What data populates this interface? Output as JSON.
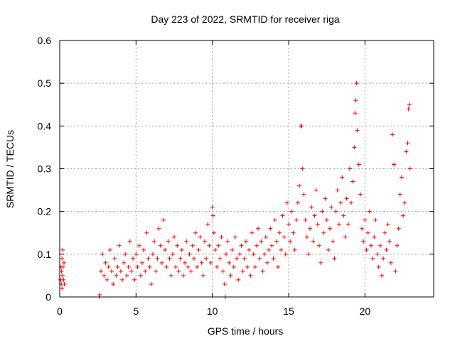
{
  "chart_data": {
    "type": "scatter",
    "title": "Day 223 of 2022, SRMTID for receiver riga",
    "xlabel": "GPS time / hours",
    "ylabel": "SRMTID / TECUs",
    "xlim": [
      0,
      24.5
    ],
    "ylim": [
      0,
      0.6
    ],
    "x_ticks": [
      0,
      5,
      10,
      15,
      20
    ],
    "x_tick_labels": [
      "0",
      "5",
      "10",
      "15",
      "20"
    ],
    "y_ticks": [
      0,
      0.1,
      0.2,
      0.3,
      0.4,
      0.5,
      0.6
    ],
    "y_tick_labels": [
      "0",
      "0.1",
      "0.2",
      "0.3",
      "0.4",
      "0.5",
      "0.6"
    ],
    "grid": true,
    "marker": "+",
    "color": "#ff0000",
    "series": [
      {
        "name": "SRMTID",
        "points": [
          [
            0.05,
            0.04
          ],
          [
            0.08,
            0.07
          ],
          [
            0.1,
            0.03
          ],
          [
            0.12,
            0.06
          ],
          [
            0.15,
            0.09
          ],
          [
            0.18,
            0.05
          ],
          [
            0.2,
            0.11
          ],
          [
            0.22,
            0.07
          ],
          [
            0.25,
            0.04
          ],
          [
            0.28,
            0.08
          ],
          [
            0.3,
            0.03
          ],
          [
            0.15,
            0.02
          ],
          [
            2.6,
            0.0
          ],
          [
            2.62,
            0.005
          ],
          [
            2.7,
            0.06
          ],
          [
            2.8,
            0.1
          ],
          [
            2.9,
            0.05
          ],
          [
            3.0,
            0.08
          ],
          [
            3.1,
            0.04
          ],
          [
            3.2,
            0.07
          ],
          [
            3.3,
            0.11
          ],
          [
            3.4,
            0.06
          ],
          [
            3.5,
            0.03
          ],
          [
            3.6,
            0.09
          ],
          [
            3.7,
            0.05
          ],
          [
            3.8,
            0.07
          ],
          [
            3.9,
            0.12
          ],
          [
            4.0,
            0.06
          ],
          [
            4.1,
            0.04
          ],
          [
            4.2,
            0.08
          ],
          [
            4.3,
            0.1
          ],
          [
            4.4,
            0.05
          ],
          [
            4.5,
            0.07
          ],
          [
            4.6,
            0.13
          ],
          [
            4.7,
            0.06
          ],
          [
            4.8,
            0.09
          ],
          [
            4.9,
            0.04
          ],
          [
            5.0,
            0.1
          ],
          [
            5.1,
            0.07
          ],
          [
            5.2,
            0.12
          ],
          [
            5.3,
            0.05
          ],
          [
            5.4,
            0.08
          ],
          [
            5.5,
            0.11
          ],
          [
            5.6,
            0.06
          ],
          [
            5.7,
            0.15
          ],
          [
            5.8,
            0.09
          ],
          [
            5.9,
            0.07
          ],
          [
            6.0,
            0.03
          ],
          [
            6.1,
            0.1
          ],
          [
            6.2,
            0.13
          ],
          [
            6.3,
            0.06
          ],
          [
            6.4,
            0.09
          ],
          [
            6.5,
            0.16
          ],
          [
            6.6,
            0.12
          ],
          [
            6.7,
            0.08
          ],
          [
            6.8,
            0.18
          ],
          [
            6.9,
            0.11
          ],
          [
            7.0,
            0.07
          ],
          [
            7.1,
            0.13
          ],
          [
            7.2,
            0.09
          ],
          [
            7.3,
            0.05
          ],
          [
            7.4,
            0.1
          ],
          [
            7.5,
            0.14
          ],
          [
            7.6,
            0.07
          ],
          [
            7.7,
            0.12
          ],
          [
            7.8,
            0.06
          ],
          [
            7.9,
            0.09
          ],
          [
            8.0,
            0.11
          ],
          [
            8.1,
            0.05
          ],
          [
            8.2,
            0.08
          ],
          [
            8.3,
            0.13
          ],
          [
            8.4,
            0.07
          ],
          [
            8.5,
            0.1
          ],
          [
            8.6,
            0.06
          ],
          [
            8.7,
            0.12
          ],
          [
            8.8,
            0.09
          ],
          [
            8.9,
            0.15
          ],
          [
            9.0,
            0.07
          ],
          [
            9.1,
            0.11
          ],
          [
            9.2,
            0.14
          ],
          [
            9.3,
            0.08
          ],
          [
            9.4,
            0.05
          ],
          [
            9.5,
            0.13
          ],
          [
            9.6,
            0.09
          ],
          [
            9.7,
            0.17
          ],
          [
            9.8,
            0.12
          ],
          [
            9.9,
            0.08
          ],
          [
            10.0,
            0.21
          ],
          [
            10.05,
            0.19
          ],
          [
            10.1,
            0.15
          ],
          [
            10.2,
            0.11
          ],
          [
            10.3,
            0.07
          ],
          [
            10.4,
            0.12
          ],
          [
            10.5,
            0.09
          ],
          [
            10.6,
            0.14
          ],
          [
            10.7,
            0.06
          ],
          [
            10.8,
            0.03
          ],
          [
            10.85,
            0.0
          ],
          [
            10.9,
            0.1
          ],
          [
            11.0,
            0.13
          ],
          [
            11.1,
            0.08
          ],
          [
            11.2,
            0.05
          ],
          [
            11.3,
            0.11
          ],
          [
            11.4,
            0.07
          ],
          [
            11.5,
            0.14
          ],
          [
            11.6,
            0.09
          ],
          [
            11.7,
            0.04
          ],
          [
            11.8,
            0.1
          ],
          [
            11.9,
            0.12
          ],
          [
            12.0,
            0.06
          ],
          [
            12.1,
            0.09
          ],
          [
            12.2,
            0.13
          ],
          [
            12.3,
            0.07
          ],
          [
            12.4,
            0.11
          ],
          [
            12.5,
            0.05
          ],
          [
            12.6,
            0.15
          ],
          [
            12.7,
            0.1
          ],
          [
            12.8,
            0.07
          ],
          [
            12.9,
            0.12
          ],
          [
            13.0,
            0.16
          ],
          [
            13.1,
            0.09
          ],
          [
            13.2,
            0.13
          ],
          [
            13.3,
            0.06
          ],
          [
            13.4,
            0.1
          ],
          [
            13.5,
            0.14
          ],
          [
            13.6,
            0.08
          ],
          [
            13.7,
            0.11
          ],
          [
            13.8,
            0.16
          ],
          [
            13.9,
            0.12
          ],
          [
            14.0,
            0.09
          ],
          [
            14.1,
            0.18
          ],
          [
            14.2,
            0.13
          ],
          [
            14.3,
            0.07
          ],
          [
            14.4,
            0.15
          ],
          [
            14.5,
            0.11
          ],
          [
            14.6,
            0.19
          ],
          [
            14.7,
            0.14
          ],
          [
            14.8,
            0.1
          ],
          [
            14.9,
            0.22
          ],
          [
            15.0,
            0.17
          ],
          [
            15.1,
            0.13
          ],
          [
            15.2,
            0.2
          ],
          [
            15.3,
            0.15
          ],
          [
            15.4,
            0.11
          ],
          [
            15.5,
            0.18
          ],
          [
            15.6,
            0.22
          ],
          [
            15.7,
            0.26
          ],
          [
            15.8,
            0.4
          ],
          [
            15.85,
            0.4
          ],
          [
            15.9,
            0.3
          ],
          [
            16.0,
            0.24
          ],
          [
            16.1,
            0.18
          ],
          [
            16.2,
            0.14
          ],
          [
            16.3,
            0.1
          ],
          [
            16.4,
            0.16
          ],
          [
            16.5,
            0.21
          ],
          [
            16.6,
            0.13
          ],
          [
            16.7,
            0.19
          ],
          [
            16.8,
            0.25
          ],
          [
            16.9,
            0.17
          ],
          [
            17.0,
            0.12
          ],
          [
            17.1,
            0.08
          ],
          [
            17.2,
            0.2
          ],
          [
            17.3,
            0.15
          ],
          [
            17.4,
            0.23
          ],
          [
            17.5,
            0.18
          ],
          [
            17.6,
            0.11
          ],
          [
            17.7,
            0.16
          ],
          [
            17.8,
            0.21
          ],
          [
            17.9,
            0.13
          ],
          [
            18.0,
            0.09
          ],
          [
            18.1,
            0.2
          ],
          [
            18.2,
            0.25
          ],
          [
            18.3,
            0.17
          ],
          [
            18.4,
            0.22
          ],
          [
            18.5,
            0.28
          ],
          [
            18.6,
            0.19
          ],
          [
            18.7,
            0.14
          ],
          [
            18.8,
            0.23
          ],
          [
            18.9,
            0.17
          ],
          [
            19.0,
            0.3
          ],
          [
            19.1,
            0.22
          ],
          [
            19.2,
            0.27
          ],
          [
            19.3,
            0.35
          ],
          [
            19.35,
            0.43
          ],
          [
            19.4,
            0.46
          ],
          [
            19.45,
            0.5
          ],
          [
            19.5,
            0.39
          ],
          [
            19.6,
            0.31
          ],
          [
            19.7,
            0.24
          ],
          [
            19.8,
            0.16
          ],
          [
            19.9,
            0.13
          ],
          [
            20.0,
            0.18
          ],
          [
            20.1,
            0.11
          ],
          [
            20.2,
            0.15
          ],
          [
            20.3,
            0.2
          ],
          [
            20.4,
            0.12
          ],
          [
            20.5,
            0.09
          ],
          [
            20.6,
            0.14
          ],
          [
            20.7,
            0.18
          ],
          [
            20.8,
            0.1
          ],
          [
            20.9,
            0.07
          ],
          [
            21.0,
            0.12
          ],
          [
            21.1,
            0.05
          ],
          [
            21.2,
            0.09
          ],
          [
            21.3,
            0.15
          ],
          [
            21.4,
            0.11
          ],
          [
            21.5,
            0.17
          ],
          [
            21.6,
            0.13
          ],
          [
            21.7,
            0.08
          ],
          [
            21.8,
            0.38
          ],
          [
            21.9,
            0.31
          ],
          [
            22.0,
            0.06
          ],
          [
            22.1,
            0.12
          ],
          [
            22.2,
            0.16
          ],
          [
            22.3,
            0.24
          ],
          [
            22.4,
            0.28
          ],
          [
            22.5,
            0.19
          ],
          [
            22.6,
            0.22
          ],
          [
            22.7,
            0.34
          ],
          [
            22.8,
            0.36
          ],
          [
            22.85,
            0.44
          ],
          [
            22.9,
            0.45
          ],
          [
            22.95,
            0.3
          ]
        ]
      }
    ]
  }
}
